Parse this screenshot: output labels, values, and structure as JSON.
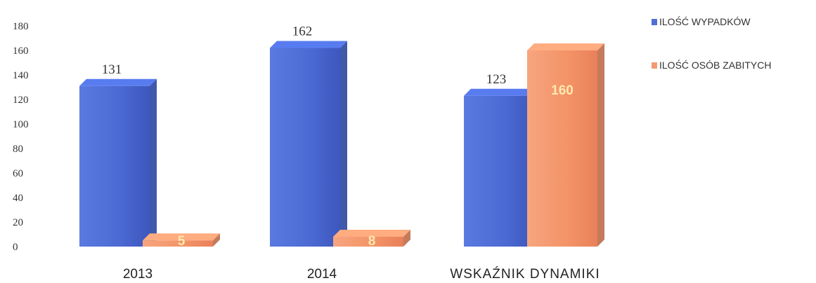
{
  "chart_data": {
    "type": "bar",
    "title": "",
    "xlabel": "",
    "ylabel": "",
    "ylim": [
      0,
      180
    ],
    "ytick_step": 20,
    "grid": false,
    "legend_position": "top-right",
    "categories": [
      "2013",
      "2014",
      "WSKAŹNIK DYNAMIKI"
    ],
    "series": [
      {
        "name": "ILOŚĆ WYPADKÓW",
        "color": "#4f6fd6",
        "values": [
          131,
          162,
          123
        ],
        "labels": [
          "131",
          "162",
          "123"
        ],
        "label_position": "above"
      },
      {
        "name": "ILOŚĆ OSÓB ZABITYCH",
        "color": "#f49a72",
        "values": [
          5,
          8,
          160
        ],
        "labels": [
          "5",
          "8",
          "160"
        ],
        "label_position": "inside"
      }
    ]
  }
}
